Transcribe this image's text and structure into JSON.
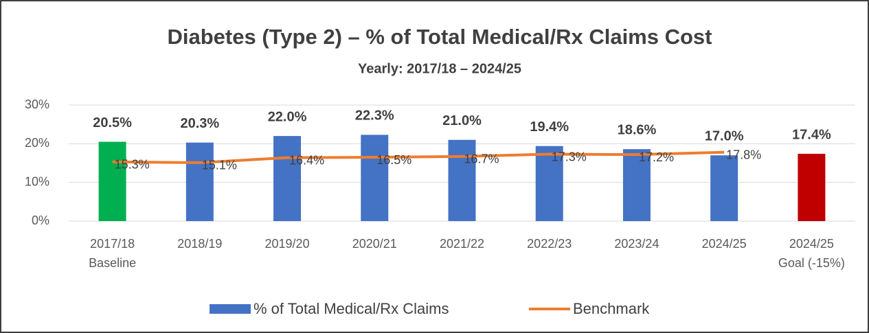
{
  "chart_data": {
    "type": "bar",
    "title": "Diabetes (Type 2) – % of Total Medical/Rx Claims Cost",
    "subtitle": "Yearly:  2017/18 – 2024/25",
    "categories": [
      [
        "2017/18",
        "Baseline"
      ],
      [
        "2018/19"
      ],
      [
        "2019/20"
      ],
      [
        "2020/21"
      ],
      [
        "2021/22"
      ],
      [
        "2022/23"
      ],
      [
        "2023/24"
      ],
      [
        "2024/25"
      ],
      [
        "2024/25",
        "Goal (-15%)"
      ]
    ],
    "series": [
      {
        "name": "% of Total Medical/Rx Claims",
        "type": "bar",
        "color": "#4472c4",
        "colors": [
          "#00b050",
          "#4472c4",
          "#4472c4",
          "#4472c4",
          "#4472c4",
          "#4472c4",
          "#4472c4",
          "#4472c4",
          "#c00000"
        ],
        "values": [
          20.5,
          20.3,
          22.0,
          22.3,
          21.0,
          19.4,
          18.6,
          17.0,
          17.4
        ],
        "value_labels": [
          "20.5%",
          "20.3%",
          "22.0%",
          "22.3%",
          "21.0%",
          "19.4%",
          "18.6%",
          "17.0%",
          "17.4%"
        ]
      },
      {
        "name": "Benchmark",
        "type": "line",
        "color": "#ed7d31",
        "values": [
          15.3,
          15.1,
          16.4,
          16.5,
          16.7,
          17.3,
          17.2,
          17.8,
          null
        ],
        "value_labels": [
          "15.3%",
          "15.1%",
          "16.4%",
          "16.5%",
          "16.7%",
          "17.3%",
          "17.2%",
          "17.8%",
          null
        ]
      }
    ],
    "ylim": [
      0,
      30
    ],
    "yticks": [
      {
        "value": 0,
        "label": "0%"
      },
      {
        "value": 10,
        "label": "10%"
      },
      {
        "value": 20,
        "label": "20%"
      },
      {
        "value": 30,
        "label": "30%"
      }
    ],
    "grid": true,
    "legend": "bottom"
  }
}
